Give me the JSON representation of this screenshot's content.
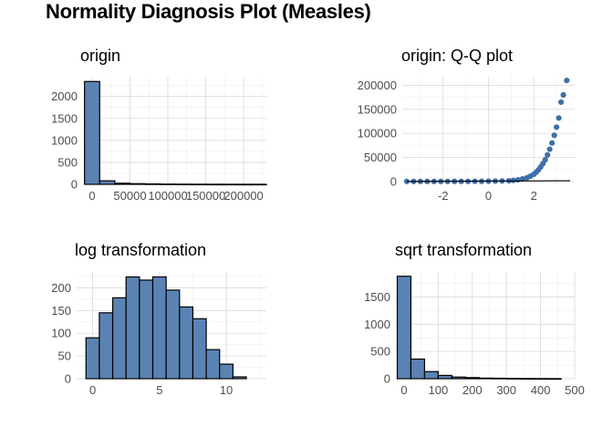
{
  "title": "Normality Diagnosis Plot (Measles)",
  "colors": {
    "fill": "#5a83b4",
    "point": "#3f6ea8",
    "outline": "#000000",
    "grid": "#d9d9d9"
  },
  "chart_data": [
    {
      "type": "bar",
      "title": "origin",
      "bin_width": 20000,
      "bins_center_start": 0,
      "values": [
        2340,
        80,
        25,
        15,
        10,
        6,
        4,
        3,
        2,
        2,
        1,
        1
      ],
      "xlim": [
        -12000,
        230000
      ],
      "ylim": [
        0,
        2450
      ],
      "x_ticks": [
        0,
        50000,
        100000,
        150000,
        200000
      ],
      "x_tick_labels": [
        "0",
        "50000",
        "100000",
        "150000",
        "200000"
      ],
      "y_ticks": [
        0,
        500,
        1000,
        1500,
        2000
      ],
      "y_tick_labels": [
        "0",
        "500",
        "1000",
        "1500",
        "2000"
      ]
    },
    {
      "type": "scatter",
      "title": "origin: Q-Q plot",
      "xlim": [
        -3.8,
        3.8
      ],
      "ylim": [
        -6000,
        218000
      ],
      "x_ticks": [
        -2,
        0,
        2
      ],
      "x_tick_labels": [
        "-2",
        "0",
        "2"
      ],
      "y_ticks": [
        0,
        50000,
        100000,
        150000,
        200000
      ],
      "y_tick_labels": [
        "0",
        "50000",
        "100000",
        "150000",
        "200000"
      ],
      "points": [
        [
          -3.6,
          0
        ],
        [
          -3.3,
          10
        ],
        [
          -3.0,
          20
        ],
        [
          -2.7,
          30
        ],
        [
          -2.4,
          40
        ],
        [
          -2.1,
          60
        ],
        [
          -1.8,
          80
        ],
        [
          -1.5,
          110
        ],
        [
          -1.2,
          150
        ],
        [
          -0.9,
          200
        ],
        [
          -0.6,
          280
        ],
        [
          -0.3,
          380
        ],
        [
          0.0,
          520
        ],
        [
          0.3,
          720
        ],
        [
          0.6,
          1000
        ],
        [
          0.9,
          1500
        ],
        [
          1.1,
          2200
        ],
        [
          1.3,
          3400
        ],
        [
          1.5,
          5200
        ],
        [
          1.7,
          7800
        ],
        [
          1.85,
          11000
        ],
        [
          2.0,
          15000
        ],
        [
          2.1,
          19000
        ],
        [
          2.2,
          24000
        ],
        [
          2.3,
          30000
        ],
        [
          2.4,
          37000
        ],
        [
          2.5,
          45000
        ],
        [
          2.6,
          55000
        ],
        [
          2.7,
          67000
        ],
        [
          2.8,
          80000
        ],
        [
          2.9,
          96000
        ],
        [
          3.0,
          113000
        ],
        [
          3.1,
          132000
        ],
        [
          3.2,
          165000
        ],
        [
          3.3,
          180000
        ],
        [
          3.45,
          210000
        ]
      ],
      "reference_line": [
        [
          -3.6,
          0
        ],
        [
          3.6,
          1500
        ]
      ]
    },
    {
      "type": "bar",
      "title": "log transformation",
      "bin_width": 1,
      "bins_center_start": 0,
      "values": [
        90,
        145,
        178,
        224,
        217,
        224,
        195,
        158,
        132,
        64,
        32,
        4
      ],
      "xlim": [
        -1.2,
        13.0
      ],
      "ylim": [
        0,
        235
      ],
      "x_ticks": [
        0,
        5,
        10
      ],
      "x_tick_labels": [
        "0",
        "5",
        "10"
      ],
      "y_ticks": [
        0,
        50,
        100,
        150,
        200
      ],
      "y_tick_labels": [
        "0",
        "50",
        "100",
        "150",
        "200"
      ]
    },
    {
      "type": "bar",
      "title": "sqrt transformation",
      "bin_width": 40,
      "bins_center_start": 0,
      "values": [
        1880,
        360,
        130,
        60,
        30,
        20,
        10,
        8,
        5,
        3,
        2,
        1
      ],
      "xlim": [
        -24,
        500
      ],
      "ylim": [
        0,
        1960
      ],
      "x_ticks": [
        0,
        100,
        200,
        300,
        400,
        500
      ],
      "x_tick_labels": [
        "0",
        "100",
        "200",
        "300",
        "400",
        "500"
      ],
      "y_ticks": [
        0,
        500,
        1000,
        1500
      ],
      "y_tick_labels": [
        "0",
        "500",
        "1000",
        "1500"
      ]
    }
  ]
}
